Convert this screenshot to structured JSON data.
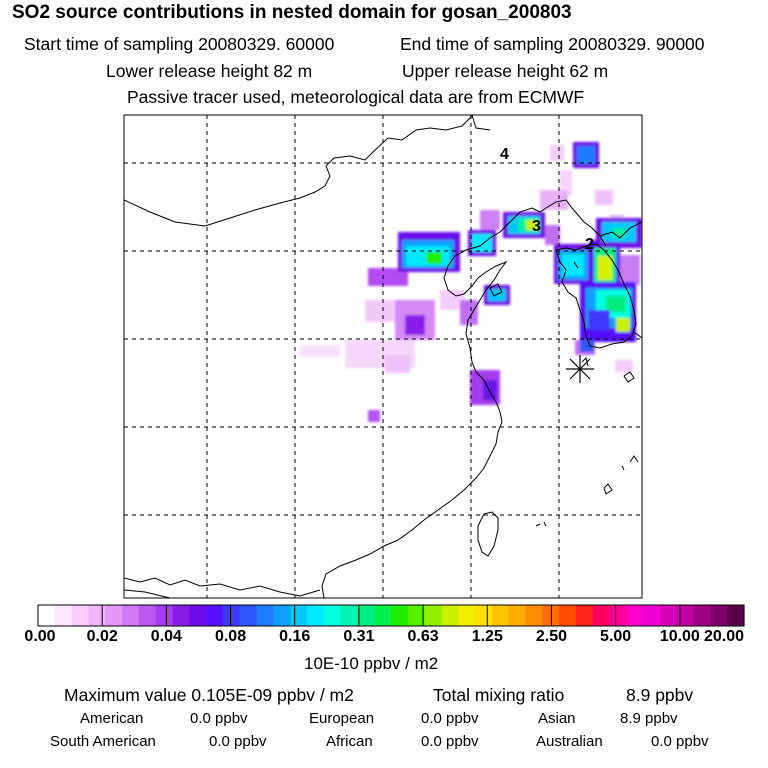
{
  "header": {
    "title": "SO2 source contributions in nested domain for gosan_200803",
    "start_time": "Start time of sampling 20080329. 60000",
    "end_time": "End time of sampling 20080329. 90000",
    "lower_height": "Lower release height   82 m",
    "upper_height": "Upper release height   62 m",
    "tracer_note": "Passive tracer used, meteorological data are from ECMWF"
  },
  "map": {
    "region_labels": [
      "4",
      "3",
      "2"
    ],
    "receptor_marker": "receptor-star-icon"
  },
  "colorbar": {
    "colors": [
      "#ffffff",
      "#fde6ff",
      "#f8ccfd",
      "#f0b2fb",
      "#e598f8",
      "#d17af5",
      "#bb56f2",
      "#a53cf0",
      "#8a1ce8",
      "#6f0ae8",
      "#5510ff",
      "#3f38ff",
      "#2e58ff",
      "#1e7cff",
      "#0fa0ff",
      "#00c8ff",
      "#00e8ff",
      "#00ffe0",
      "#00f4b0",
      "#00ee84",
      "#00f04a",
      "#1ef000",
      "#58f000",
      "#92f000",
      "#c8f000",
      "#f2f000",
      "#ffe000",
      "#ffc400",
      "#ffaa00",
      "#ff8c00",
      "#ff6e00",
      "#ff4a00",
      "#ff2418",
      "#ff0060",
      "#ff0098",
      "#ff00c8",
      "#f000d4",
      "#d800b8",
      "#c000a0",
      "#a00082",
      "#800068",
      "#5a0048"
    ],
    "tick_labels": [
      "0.00",
      "0.02",
      "0.04",
      "0.08",
      "0.16",
      "0.31",
      "0.63",
      "1.25",
      "2.50",
      "5.00",
      "10.00",
      "20.00"
    ],
    "unit": "10E-10 ppbv / m2"
  },
  "summary": {
    "max_value": "Maximum value  0.105E-09 ppbv / m2",
    "total_mixing": "Total mixing ratio",
    "total_value": "8.9 ppbv"
  },
  "sources": [
    {
      "name": "American",
      "value": "0.0 ppbv"
    },
    {
      "name": "European",
      "value": "0.0 ppbv"
    },
    {
      "name": "Asian",
      "value": "8.9 ppbv"
    },
    {
      "name": "South American",
      "value": "0.0 ppbv"
    },
    {
      "name": "African",
      "value": "0.0 ppbv"
    },
    {
      "name": "Australian",
      "value": "0.0 ppbv"
    }
  ]
}
